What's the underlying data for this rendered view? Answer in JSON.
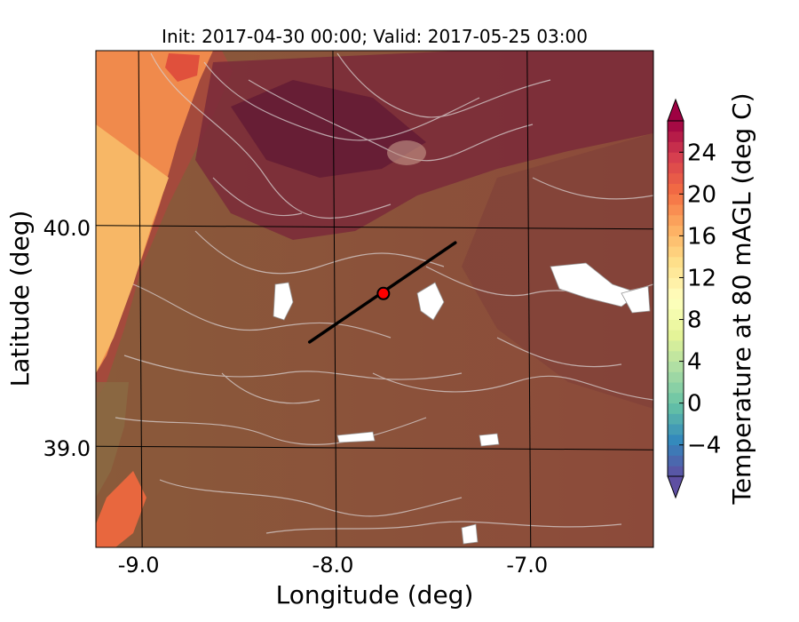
{
  "chart_data": {
    "type": "heatmap",
    "title": "Init: 2017-04-30 00:00; Valid: 2017-05-25 03:00",
    "xlabel": "Longitude (deg)",
    "ylabel": "Latitude (deg)",
    "xlim": [
      -9.22,
      -6.35
    ],
    "ylim": [
      38.55,
      40.8
    ],
    "x_ticks": [
      -9.0,
      -8.0,
      -7.0
    ],
    "x_tick_labels": [
      "-9.0",
      "-8.0",
      "-7.0"
    ],
    "y_ticks": [
      39.0,
      40.0
    ],
    "y_tick_labels": [
      "39.0",
      "40.0"
    ],
    "grid": true,
    "colorbar": {
      "label": "Temperature at 80 mAGL (deg C)",
      "min": -7,
      "max": 27,
      "ticks": [
        -4,
        0,
        4,
        8,
        12,
        16,
        20,
        24
      ],
      "tick_labels": [
        "−4",
        "0",
        "4",
        "8",
        "12",
        "16",
        "20",
        "24"
      ],
      "extend": "both",
      "colormap": "Spectral_r"
    },
    "cross_section_line": {
      "x": [
        -8.12,
        -7.37
      ],
      "y": [
        39.48,
        39.93
      ]
    },
    "point": {
      "x": -7.74,
      "y": 39.7,
      "color": "#ff0000"
    }
  }
}
